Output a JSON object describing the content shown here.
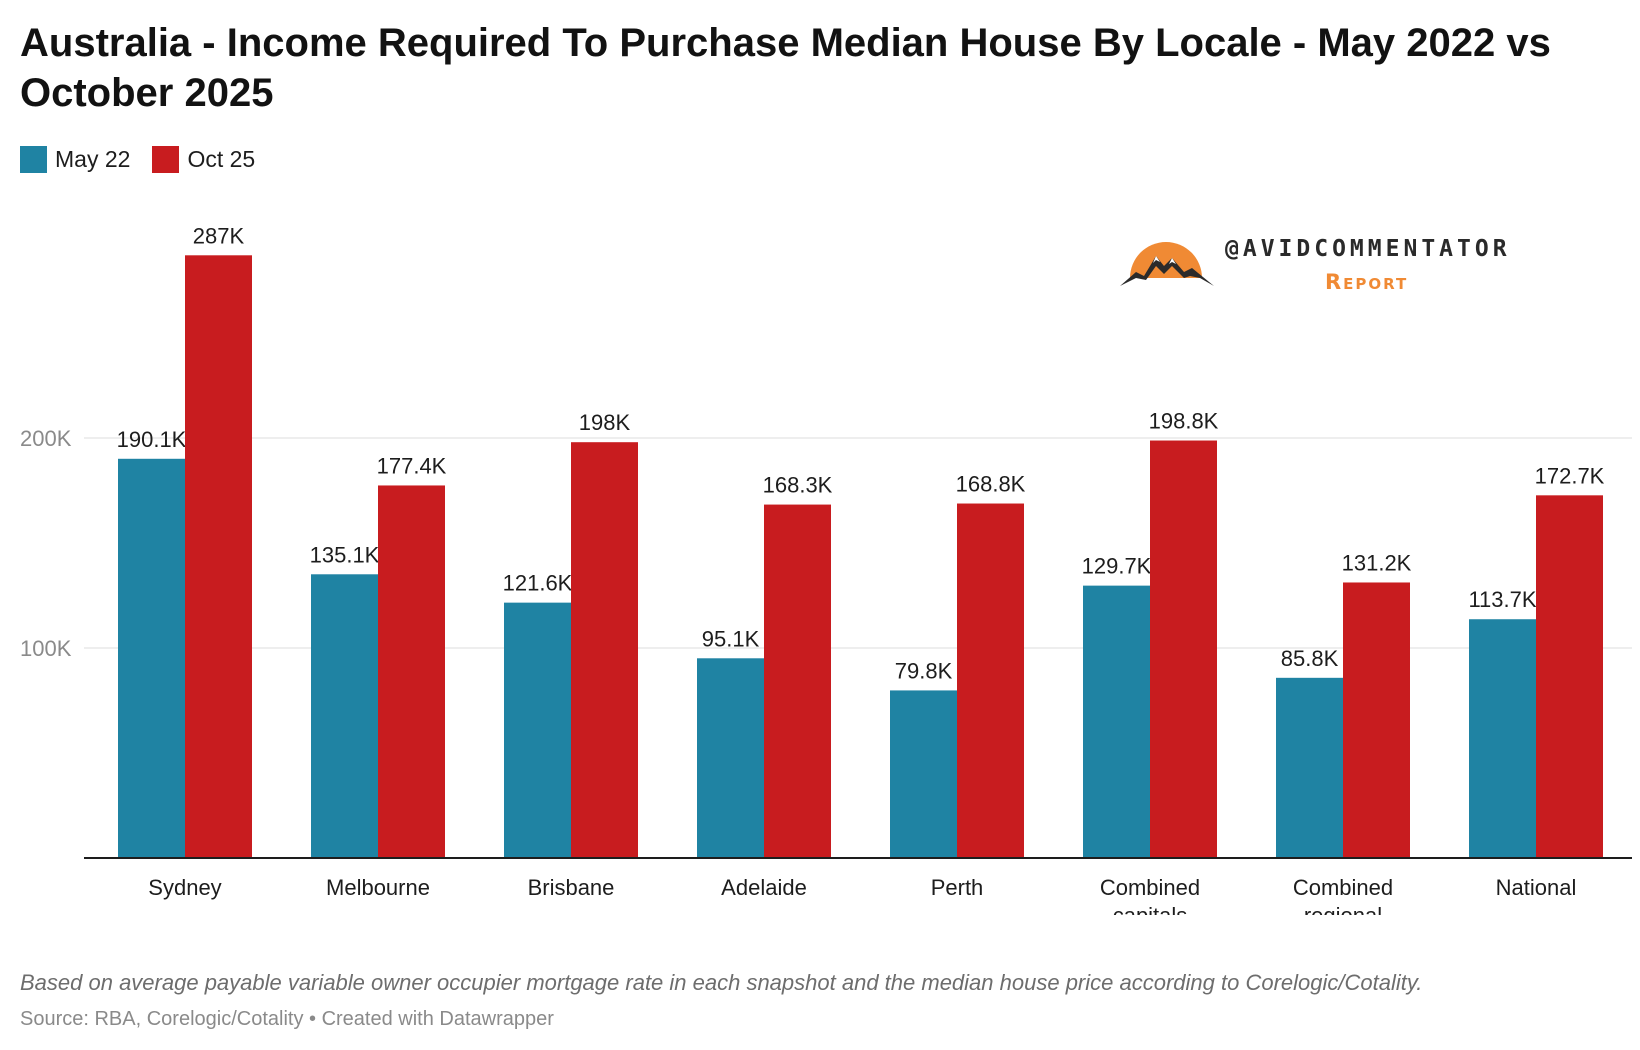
{
  "title": "Australia - Income Required To Purchase Median House By Locale - May 2022 vs October 2025",
  "legend": [
    {
      "label": "May 22",
      "color": "#1f83a3"
    },
    {
      "label": "Oct 25",
      "color": "#c81c1f"
    }
  ],
  "brand": {
    "handle": "@AVIDCOMMENTATOR",
    "sub": "Report",
    "sun_color": "#f08a34"
  },
  "chart_data": {
    "type": "bar",
    "title": "Australia - Income Required To Purchase Median House By Locale - May 2022 vs October 2025",
    "xlabel": "",
    "ylabel": "",
    "ylim": [
      0,
      300000
    ],
    "yticks": [
      {
        "value": 100000,
        "label": "100K"
      },
      {
        "value": 200000,
        "label": "200K"
      }
    ],
    "categories": [
      [
        "Sydney"
      ],
      [
        "Melbourne"
      ],
      [
        "Brisbane"
      ],
      [
        "Adelaide"
      ],
      [
        "Perth"
      ],
      [
        "Combined",
        "capitals"
      ],
      [
        "Combined",
        "regional"
      ],
      [
        "National"
      ]
    ],
    "series": [
      {
        "name": "May 22",
        "color": "#1f83a3",
        "values": [
          190100,
          135100,
          121600,
          95100,
          79800,
          129700,
          85800,
          113700
        ],
        "labels": [
          "190.1K",
          "135.1K",
          "121.6K",
          "95.1K",
          "79.8K",
          "129.7K",
          "85.8K",
          "113.7K"
        ]
      },
      {
        "name": "Oct 25",
        "color": "#c81c1f",
        "values": [
          287000,
          177400,
          198000,
          168300,
          168800,
          198800,
          131200,
          172700
        ],
        "labels": [
          "287K",
          "177.4K",
          "198K",
          "168.3K",
          "168.8K",
          "198.8K",
          "131.2K",
          "172.7K"
        ]
      }
    ]
  },
  "footer": {
    "note": "Based on average payable variable owner occupier mortgage rate in each snapshot and the median house price according to Corelogic/Cotality.",
    "source": "Source: RBA, Corelogic/Cotality • Created with Datawrapper"
  }
}
